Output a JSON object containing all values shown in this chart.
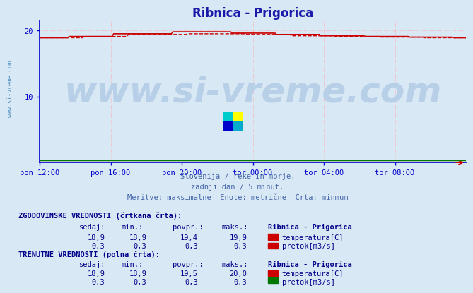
{
  "title": "Ribnica - Prigorica",
  "title_color": "#1a1aaa",
  "bg_color": "#d8e8f4",
  "plot_bg_color": "#d8e8f4",
  "fig_bg_color": "#d8e8f4",
  "watermark": "www.si-vreme.com",
  "watermark_color": "#b8cfe8",
  "axis_color": "#0000cc",
  "grid_color": "#ffb0b0",
  "xtick_labels": [
    "pon 12:00",
    "pon 16:00",
    "pon 20:00",
    "tor 00:00",
    "tor 04:00",
    "tor 08:00"
  ],
  "xtick_positions": [
    0,
    48,
    96,
    144,
    192,
    240
  ],
  "ytick_labels": [
    "10",
    "20"
  ],
  "ytick_positions": [
    10,
    20
  ],
  "ymin": 0,
  "ymax": 21.5,
  "xmin": 0,
  "xmax": 288,
  "temp_solid_color": "#cc0000",
  "temp_dashed_color": "#cc0000",
  "flow_solid_color": "#007700",
  "flow_dashed_color": "#cc0000",
  "subtitle_lines": [
    "Slovenija / reke in morje.",
    "zadnji dan / 5 minut.",
    "Meritve: maksimalne  Enote: metrične  Črta: minmum"
  ],
  "subtitle_color": "#4466aa",
  "table_header1": "ZGODOVINSKE VREDNOSTI (črtkana črta):",
  "table_header2": "TRENUTNE VREDNOSTI (polna črta):",
  "table_col_headers": [
    "sedaj:",
    "min.:",
    "povpr.:",
    "maks.:"
  ],
  "table_col_header_station": "Ribnica - Prigorica",
  "hist_temp_vals": [
    "18,9",
    "18,9",
    "19,4",
    "19,9"
  ],
  "hist_flow_vals": [
    "0,3",
    "0,3",
    "0,3",
    "0,3"
  ],
  "curr_temp_vals": [
    "18,9",
    "18,9",
    "19,5",
    "20,0"
  ],
  "curr_flow_vals": [
    "0,3",
    "0,3",
    "0,3",
    "0,3"
  ],
  "temp_label": "temperatura[C]",
  "flow_label": "pretok[m3/s]",
  "temp_square_color": "#cc0000",
  "flow_hist_square_color": "#cc0000",
  "flow_curr_square_color": "#007700",
  "table_color": "#00008B",
  "watermark_fontsize": 36,
  "title_fontsize": 12,
  "tick_fontsize": 7.5,
  "subtitle_fontsize": 7.5,
  "table_fontsize": 7.5
}
